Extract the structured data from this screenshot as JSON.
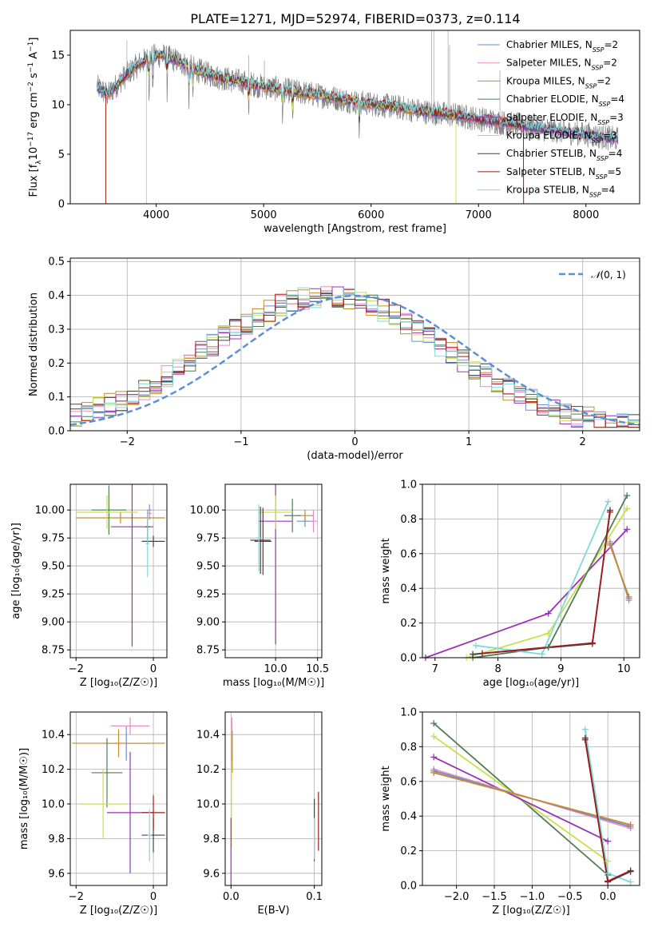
{
  "figure": {
    "title": "PLATE=1271, MJD=52974, FIBERID=0373, z=0.114"
  },
  "palette": {
    "Chabrier MILES": "#6a8fd4",
    "Salpeter MILES": "#e88bbf",
    "Kroupa MILES": "#c98a2a",
    "Chabrier ELODIE": "#4f7d55",
    "Salpeter ELODIE": "#9b30b8",
    "Kroupa ELODIE": "#c8e04a",
    "Chabrier STELIB": "#444444",
    "Salpeter STELIB": "#a01c1c",
    "Kroupa STELIB": "#7fd8dc",
    "data": "#7f7f7f",
    "gaussian": "#5b8fd6",
    "orange": "#e8731c"
  },
  "chart_data": [
    {
      "id": "spectrum",
      "type": "line",
      "title": "PLATE=1271, MJD=52974, FIBERID=0373, z=0.114",
      "xlabel": "wavelength [Angstrom, rest frame]",
      "ylabel_parts": [
        "Flux [f",
        "λ",
        "10",
        "−17",
        " erg cm",
        "−2",
        " s",
        "−1",
        " A",
        "−1",
        "]"
      ],
      "xlim": [
        3200,
        8500
      ],
      "ylim": [
        0,
        17.5
      ],
      "xticks": [
        4000,
        5000,
        6000,
        7000,
        8000
      ],
      "yticks": [
        0,
        5,
        10,
        15
      ],
      "grid": false,
      "legend": {
        "placement": "top-right",
        "entries": [
          {
            "series": "Chabrier MILES",
            "label": "Chabrier MILES, N",
            "sub": "SSP",
            "suffix": "=2"
          },
          {
            "series": "Salpeter MILES",
            "label": "Salpeter MILES, N",
            "sub": "SSP",
            "suffix": "=2"
          },
          {
            "series": "Kroupa MILES",
            "label": "Kroupa MILES, N",
            "sub": "SSP",
            "suffix": "=2"
          },
          {
            "series": "Chabrier ELODIE",
            "label": "Chabrier ELODIE, N",
            "sub": "SSP",
            "suffix": "=4"
          },
          {
            "series": "Salpeter ELODIE",
            "label": "Salpeter ELODIE, N",
            "sub": "SSP",
            "suffix": "=3"
          },
          {
            "series": "Kroupa ELODIE",
            "label": "Kroupa ELODIE, N",
            "sub": "SSP",
            "suffix": "=3"
          },
          {
            "series": "Chabrier STELIB",
            "label": "Chabrier STELIB, N",
            "sub": "SSP",
            "suffix": "=4"
          },
          {
            "series": "Salpeter STELIB",
            "label": "Salpeter STELIB, N",
            "sub": "SSP",
            "suffix": "=5"
          },
          {
            "series": "Kroupa STELIB",
            "label": "Kroupa STELIB, N",
            "sub": "SSP",
            "suffix": "=4"
          }
        ]
      },
      "continuum": {
        "x": [
          3450,
          3550,
          3650,
          3750,
          3850,
          3950,
          4050,
          4200,
          4400,
          4600,
          4800,
          5000,
          5300,
          5600,
          5900,
          6200,
          6500,
          6800,
          7100,
          7400,
          7700,
          8000,
          8300
        ],
        "y": [
          11.8,
          11.0,
          12.2,
          13.3,
          14.2,
          14.8,
          15.0,
          14.4,
          13.4,
          12.7,
          12.3,
          11.8,
          11.3,
          10.8,
          10.2,
          9.8,
          9.3,
          8.9,
          8.4,
          7.9,
          7.4,
          7.0,
          6.5
        ]
      },
      "noise": 1.3,
      "absorption_lines": [
        3934,
        3969,
        4102,
        4304,
        4341,
        4861,
        5175,
        5270,
        5890
      ],
      "emission_spikes": [
        {
          "x": 3727,
          "y": 16.5
        },
        {
          "x": 4861,
          "y": 15.0
        },
        {
          "x": 5007,
          "y": 14.5
        },
        {
          "x": 6563,
          "y": 17.5
        },
        {
          "x": 6584,
          "y": 17.5
        },
        {
          "x": 6717,
          "y": 17.5
        },
        {
          "x": 6731,
          "y": 16.0
        },
        {
          "x": 7200,
          "y": 13.5
        }
      ],
      "series_cutoffs": {
        "Kroupa MILES": {
          "low": 3530,
          "high": 7420
        },
        "Kroupa ELODIE": {
          "low": 3910,
          "high": 6790
        },
        "Salpeter STELIB": {
          "low": 3530,
          "high": 7420
        }
      }
    },
    {
      "id": "residuals",
      "type": "histogram",
      "xlabel": "(data-model)/error",
      "ylabel": "Normed distribution",
      "xlim": [
        -2.5,
        2.5
      ],
      "ylim": [
        0,
        0.51
      ],
      "xticks": [
        -2,
        -1,
        0,
        1,
        2
      ],
      "xtick_labels": [
        "−2",
        "−1",
        "0",
        "1",
        "2"
      ],
      "yticks": [
        0,
        0.1,
        0.2,
        0.3,
        0.4,
        0.5
      ],
      "ytick_labels": [
        "0.0",
        "0.1",
        "0.2",
        "0.3",
        "0.4",
        "0.5"
      ],
      "grid": true,
      "bin_width": 0.1,
      "legend": {
        "placement": "top-right",
        "entries": [
          {
            "label_main": "𝒩",
            "label_rest": "(0, 1)"
          }
        ]
      },
      "gaussian": {
        "mean": 0,
        "sigma": 1
      }
    },
    {
      "id": "age-vs-Z",
      "type": "errorbar",
      "xlabel": "Z [log₁₀(Z/Z☉)]",
      "ylabel": "age  [log₁₀(age/yr)]",
      "xlim": [
        -2.15,
        0.35
      ],
      "ylim": [
        8.68,
        10.23
      ],
      "xticks": [
        -2,
        0
      ],
      "xtick_labels": [
        "−2",
        "0"
      ],
      "yticks": [
        8.75,
        9.0,
        9.25,
        9.5,
        9.75,
        10.0
      ],
      "ytick_labels": [
        "8.75",
        "9.00",
        "9.25",
        "9.50",
        "9.75",
        "10.00"
      ],
      "grid": true,
      "points": [
        {
          "series": "Chabrier MILES",
          "x": -0.1,
          "xerr": 0.05,
          "y": 10.0,
          "yerr": 0.05
        },
        {
          "series": "Salpeter MILES",
          "x": -0.1,
          "xerr": 0.06,
          "y": 9.97,
          "yerr": 0.06
        },
        {
          "series": "Kroupa MILES",
          "x": -0.85,
          "xerr": 1.15,
          "y": 9.93,
          "yerr": 0.05
        },
        {
          "series": "Chabrier ELODIE",
          "x": -1.15,
          "xerr": 0.45,
          "y": 10.0,
          "yerr": 0.22
        },
        {
          "series": "Salpeter ELODIE",
          "x": -0.55,
          "xerr": 0.55,
          "y": 9.85,
          "yerr": 1.07
        },
        {
          "series": "Kroupa ELODIE",
          "x": -1.2,
          "xerr": 0.8,
          "y": 9.98,
          "yerr": 0.15
        },
        {
          "series": "Chabrier STELIB",
          "x": 0.0,
          "xerr": 0.3,
          "y": 9.72,
          "yerr": 0.05
        },
        {
          "series": "Salpeter STELIB",
          "x": -0.15,
          "xerr": 0.05,
          "y": 9.85,
          "yerr": 0.15
        },
        {
          "series": "Kroupa STELIB",
          "x": -0.15,
          "xerr": 0.05,
          "y": 9.7,
          "yerr": 0.3
        }
      ]
    },
    {
      "id": "age-vs-mass",
      "type": "errorbar",
      "xlabel": "mass [log₁₀(M/M☉)]",
      "ylabel": "",
      "xlim": [
        9.4,
        10.55
      ],
      "ylim": [
        8.68,
        10.23
      ],
      "xticks": [
        10.0,
        10.5
      ],
      "xtick_labels": [
        "10.0",
        "10.5"
      ],
      "yticks": [
        8.75,
        9.0,
        9.25,
        9.5,
        9.75,
        10.0
      ],
      "ytick_labels": [
        "8.75",
        "9.00",
        "9.25",
        "9.50",
        "9.75",
        "10.00"
      ],
      "grid": true,
      "points": [
        {
          "series": "Chabrier MILES",
          "x": 10.35,
          "xerr": 0.1,
          "y": 9.9,
          "yerr": 0.05
        },
        {
          "series": "Salpeter MILES",
          "x": 10.45,
          "xerr": 0.05,
          "y": 9.9,
          "yerr": 0.1
        },
        {
          "series": "Kroupa MILES",
          "x": 10.35,
          "xerr": 0.1,
          "y": 9.95,
          "yerr": 0.05
        },
        {
          "series": "Chabrier ELODIE",
          "x": 10.2,
          "xerr": 0.1,
          "y": 9.95,
          "yerr": 0.15
        },
        {
          "series": "Salpeter ELODIE",
          "x": 10.0,
          "xerr": 0.2,
          "y": 9.9,
          "yerr": 1.1
        },
        {
          "series": "Kroupa ELODIE",
          "x": 10.0,
          "xerr": 0.2,
          "y": 9.98,
          "yerr": 0.15
        },
        {
          "series": "Chabrier STELIB",
          "x": 9.82,
          "xerr": 0.12,
          "y": 9.73,
          "yerr": 0.3
        },
        {
          "series": "Salpeter STELIB",
          "x": 9.85,
          "xerr": 0.1,
          "y": 9.72,
          "yerr": 0.3
        },
        {
          "series": "Kroupa STELIB",
          "x": 9.8,
          "xerr": 0.05,
          "y": 9.75,
          "yerr": 0.3
        }
      ]
    },
    {
      "id": "weight-vs-age",
      "type": "line",
      "xlabel": "age  [log₁₀(age/yr)]",
      "ylabel": "mass weight",
      "xlim": [
        6.8,
        10.25
      ],
      "ylim": [
        0,
        1.0
      ],
      "xticks": [
        7,
        8,
        9,
        10
      ],
      "yticks": [
        0,
        0.2,
        0.4,
        0.6,
        0.8,
        1.0
      ],
      "ytick_labels": [
        "0.0",
        "0.2",
        "0.4",
        "0.6",
        "0.8",
        "1.0"
      ],
      "grid": true,
      "series": [
        {
          "name": "Salpeter ELODIE",
          "x": [
            6.85,
            8.8,
            10.05
          ],
          "y": [
            0.0,
            0.255,
            0.74
          ]
        },
        {
          "name": "Kroupa ELODIE",
          "x": [
            7.5,
            8.8,
            10.05
          ],
          "y": [
            0.0,
            0.14,
            0.86
          ]
        },
        {
          "name": "Chabrier ELODIE",
          "x": [
            7.6,
            8.8,
            10.05
          ],
          "y": [
            0.0,
            0.06,
            0.935
          ]
        },
        {
          "name": "Kroupa STELIB",
          "x": [
            7.65,
            8.7,
            9.75
          ],
          "y": [
            0.07,
            0.02,
            0.9
          ]
        },
        {
          "name": "Chabrier STELIB",
          "x": [
            7.6,
            9.5,
            9.78
          ],
          "y": [
            0.02,
            0.08,
            0.85
          ]
        },
        {
          "name": "Salpeter STELIB",
          "x": [
            7.75,
            9.5,
            9.78
          ],
          "y": [
            0.025,
            0.085,
            0.84
          ]
        },
        {
          "name": "Salpeter MILES",
          "x": [
            9.78,
            10.08
          ],
          "y": [
            0.67,
            0.33
          ]
        },
        {
          "name": "Chabrier MILES",
          "x": [
            9.78,
            10.08
          ],
          "y": [
            0.66,
            0.34
          ]
        },
        {
          "name": "Kroupa MILES",
          "x": [
            9.78,
            10.08
          ],
          "y": [
            0.65,
            0.35
          ]
        }
      ]
    },
    {
      "id": "mass-vs-Z",
      "type": "errorbar",
      "xlabel": "Z [log₁₀(Z/Z☉)]",
      "ylabel": "mass [log₁₀(M/M☉)]",
      "xlim": [
        -2.15,
        0.35
      ],
      "ylim": [
        9.53,
        10.53
      ],
      "xticks": [
        -2,
        0
      ],
      "xtick_labels": [
        "−2",
        "0"
      ],
      "yticks": [
        9.6,
        9.8,
        10.0,
        10.2,
        10.4
      ],
      "ytick_labels": [
        "9.6",
        "9.8",
        "10.0",
        "10.2",
        "10.4"
      ],
      "grid": true,
      "points": [
        {
          "series": "Chabrier MILES",
          "x": -0.7,
          "xerr": 0.6,
          "y": 10.35,
          "yerr": 0.1
        },
        {
          "series": "Salpeter MILES",
          "x": -0.6,
          "xerr": 0.5,
          "y": 10.45,
          "yerr": 0.05
        },
        {
          "series": "Kroupa MILES",
          "x": -0.9,
          "xerr": 1.2,
          "y": 10.35,
          "yerr": 0.08
        },
        {
          "series": "Chabrier ELODIE",
          "x": -1.2,
          "xerr": 0.4,
          "y": 10.18,
          "yerr": 0.2
        },
        {
          "series": "Salpeter ELODIE",
          "x": -0.6,
          "xerr": 0.6,
          "y": 9.95,
          "yerr": 0.35
        },
        {
          "series": "Kroupa ELODIE",
          "x": -1.3,
          "xerr": 0.6,
          "y": 10.0,
          "yerr": 0.2
        },
        {
          "series": "Chabrier STELIB",
          "x": 0.0,
          "xerr": 0.3,
          "y": 9.82,
          "yerr": 0.1
        },
        {
          "series": "Salpeter STELIB",
          "x": 0.0,
          "xerr": 0.3,
          "y": 9.95,
          "yerr": 0.1
        },
        {
          "series": "Kroupa STELIB",
          "x": -0.1,
          "xerr": 0.05,
          "y": 9.82,
          "yerr": 0.15
        }
      ]
    },
    {
      "id": "mass-vs-ebv",
      "type": "errorbar",
      "xlabel": "E(B-V)",
      "ylabel": "",
      "xlim": [
        -0.007,
        0.109
      ],
      "ylim": [
        9.53,
        10.53
      ],
      "xticks": [
        0.0,
        0.1
      ],
      "xtick_labels": [
        "0.0",
        "0.1"
      ],
      "yticks": [
        9.6,
        9.8,
        10.0,
        10.2,
        10.4
      ],
      "ytick_labels": [
        "9.6",
        "9.8",
        "10.0",
        "10.2",
        "10.4"
      ],
      "grid": true,
      "points": [
        {
          "series": "Salpeter MILES",
          "x": 0.001,
          "xerr": 0.0,
          "y": 10.35,
          "yerr": 0.15
        },
        {
          "series": "Kroupa MILES",
          "x": 0.0015,
          "xerr": 0.0,
          "y": 10.3,
          "yerr": 0.12
        },
        {
          "series": "Kroupa ELODIE",
          "x": 0.0005,
          "xerr": 0.0,
          "y": 10.0,
          "yerr": 0.25
        },
        {
          "series": "Salpeter ELODIE",
          "x": 0.0,
          "xerr": 0.0,
          "y": 9.7,
          "yerr": 0.22
        },
        {
          "series": "Chabrier STELIB",
          "x": 0.1,
          "xerr": 0.0,
          "y": 9.85,
          "yerr": 0.18
        },
        {
          "series": "Salpeter STELIB",
          "x": 0.105,
          "xerr": 0.0,
          "y": 9.9,
          "yerr": 0.17
        },
        {
          "series": "Kroupa STELIB",
          "x": 0.1,
          "xerr": 0.0,
          "y": 9.8,
          "yerr": 0.12
        }
      ]
    },
    {
      "id": "weight-vs-Z",
      "type": "line",
      "xlabel": "Z [log₁₀(Z/Z☉)]",
      "ylabel": "mass weight",
      "xlim": [
        -2.45,
        0.42
      ],
      "ylim": [
        0,
        1.0
      ],
      "xticks": [
        -2.0,
        -1.5,
        -1.0,
        -0.5,
        0.0
      ],
      "xtick_labels": [
        "−2.0",
        "−1.5",
        "−1.0",
        "−0.5",
        "0.0"
      ],
      "yticks": [
        0,
        0.2,
        0.4,
        0.6,
        0.8,
        1.0
      ],
      "ytick_labels": [
        "0.0",
        "0.2",
        "0.4",
        "0.6",
        "0.8",
        "1.0"
      ],
      "grid": true,
      "series": [
        {
          "name": "Chabrier ELODIE",
          "x": [
            -2.3,
            0.0
          ],
          "y": [
            0.935,
            0.06
          ]
        },
        {
          "name": "Kroupa ELODIE",
          "x": [
            -2.3,
            0.0
          ],
          "y": [
            0.86,
            0.14
          ]
        },
        {
          "name": "Salpeter ELODIE",
          "x": [
            -2.3,
            0.0
          ],
          "y": [
            0.74,
            0.255
          ]
        },
        {
          "name": "Salpeter MILES",
          "x": [
            -2.3,
            0.3
          ],
          "y": [
            0.67,
            0.33
          ]
        },
        {
          "name": "Chabrier MILES",
          "x": [
            -2.3,
            0.3
          ],
          "y": [
            0.66,
            0.34
          ]
        },
        {
          "name": "Kroupa MILES",
          "x": [
            -2.3,
            0.3
          ],
          "y": [
            0.65,
            0.35
          ]
        },
        {
          "name": "Kroupa STELIB",
          "x": [
            -0.3,
            0.0,
            0.3
          ],
          "y": [
            0.9,
            0.07,
            0.02
          ]
        },
        {
          "name": "Chabrier STELIB",
          "x": [
            -0.3,
            0.0,
            0.3
          ],
          "y": [
            0.85,
            0.02,
            0.08
          ]
        },
        {
          "name": "Salpeter STELIB",
          "x": [
            -0.3,
            0.0,
            0.3
          ],
          "y": [
            0.84,
            0.025,
            0.085
          ]
        }
      ]
    }
  ]
}
